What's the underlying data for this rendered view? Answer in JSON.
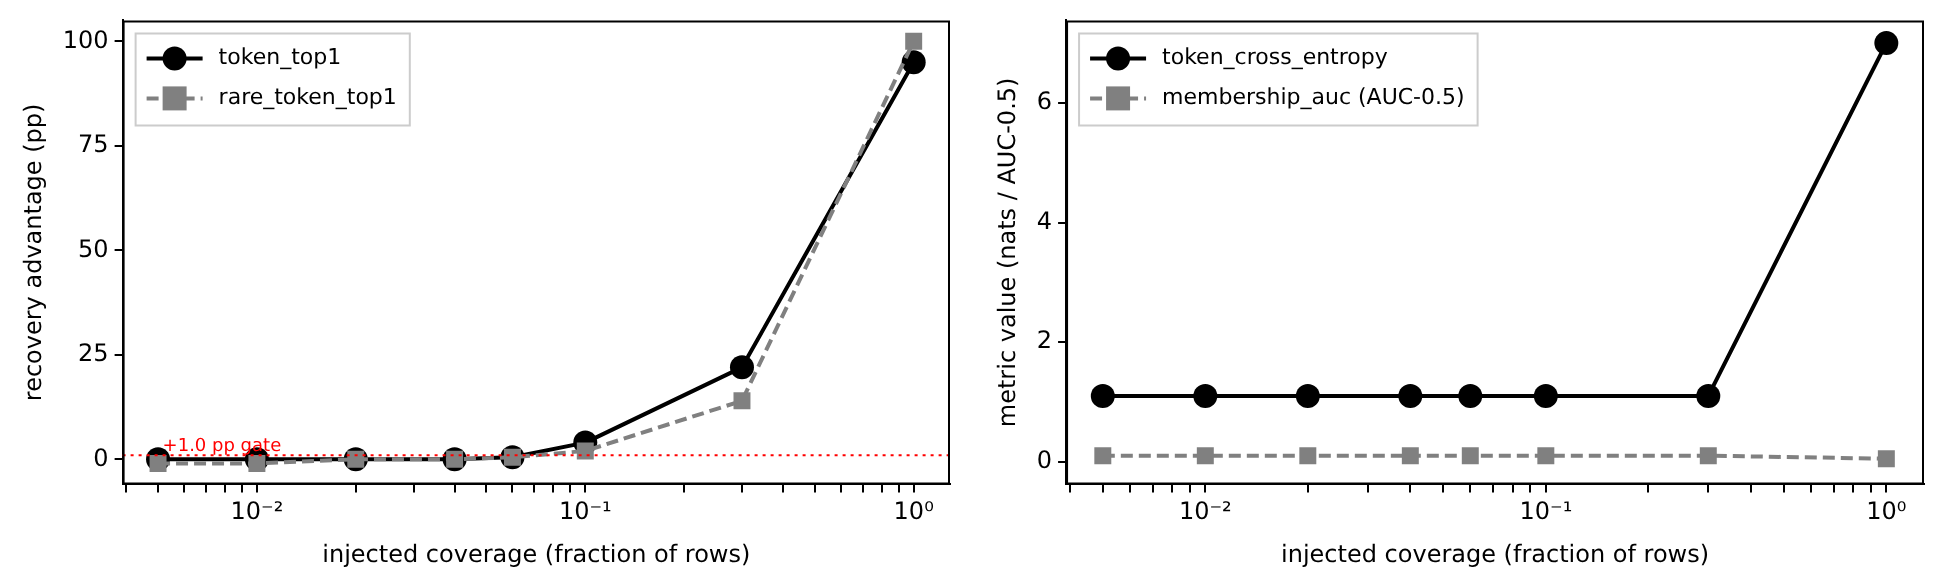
{
  "chart_data": [
    {
      "type": "line",
      "xlabel": "injected coverage (fraction of rows)",
      "ylabel": "recovery advantage (pp)",
      "log": "x",
      "grid": false,
      "legend": "top left",
      "x": [
        0.005,
        0.01,
        0.02,
        0.04,
        0.06,
        0.1,
        0.3,
        1.0
      ],
      "xlim": [
        0.0039,
        1.29
      ],
      "xticks": [
        {
          "value": 0.004,
          "label": null
        },
        {
          "value": 0.005,
          "label": null
        },
        {
          "value": 0.006,
          "label": null
        },
        {
          "value": 0.007,
          "label": null
        },
        {
          "value": 0.008,
          "label": null
        },
        {
          "value": 0.009,
          "label": null
        },
        {
          "value": 0.01,
          "label": "10⁻²"
        },
        {
          "value": 0.02,
          "label": null
        },
        {
          "value": 0.03,
          "label": null
        },
        {
          "value": 0.04,
          "label": null
        },
        {
          "value": 0.05,
          "label": null
        },
        {
          "value": 0.06,
          "label": null
        },
        {
          "value": 0.07,
          "label": null
        },
        {
          "value": 0.08,
          "label": null
        },
        {
          "value": 0.09,
          "label": null
        },
        {
          "value": 0.1,
          "label": "10⁻¹"
        },
        {
          "value": 0.2,
          "label": null
        },
        {
          "value": 0.3,
          "label": null
        },
        {
          "value": 0.4,
          "label": null
        },
        {
          "value": 0.5,
          "label": null
        },
        {
          "value": 0.6,
          "label": null
        },
        {
          "value": 0.7,
          "label": null
        },
        {
          "value": 0.8,
          "label": null
        },
        {
          "value": 0.9,
          "label": null
        },
        {
          "value": 1,
          "label": "10⁰"
        }
      ],
      "ylim": [
        -6,
        105
      ],
      "yticks": [
        0,
        25,
        50,
        75,
        100
      ],
      "series": [
        {
          "name": "token_top1",
          "color": "#000000",
          "marker": "circle",
          "line_style": "solid",
          "values": [
            0,
            0,
            0,
            0,
            0.5,
            4,
            22,
            95
          ]
        },
        {
          "name": "rare_token_top1",
          "color": "#808080",
          "marker": "square",
          "line_style": "dashed",
          "values": [
            -1,
            -1,
            0,
            0,
            0.5,
            2,
            14,
            100
          ]
        }
      ],
      "ref_lines": [
        {
          "axis": "y",
          "value": 1,
          "label": "+1.0 pp gate",
          "color": "#ff0000",
          "line_style": "dotted"
        }
      ]
    },
    {
      "type": "line",
      "xlabel": "injected coverage (fraction of rows)",
      "ylabel": "metric value (nats / AUC-0.5)",
      "log": "x",
      "grid": false,
      "legend": "top left",
      "x": [
        0.005,
        0.01,
        0.02,
        0.04,
        0.06,
        0.1,
        0.3,
        1.0
      ],
      "xlim": [
        0.0039,
        1.29
      ],
      "xticks": [
        {
          "value": 0.004,
          "label": null
        },
        {
          "value": 0.005,
          "label": null
        },
        {
          "value": 0.006,
          "label": null
        },
        {
          "value": 0.007,
          "label": null
        },
        {
          "value": 0.008,
          "label": null
        },
        {
          "value": 0.009,
          "label": null
        },
        {
          "value": 0.01,
          "label": "10⁻²"
        },
        {
          "value": 0.02,
          "label": null
        },
        {
          "value": 0.03,
          "label": null
        },
        {
          "value": 0.04,
          "label": null
        },
        {
          "value": 0.05,
          "label": null
        },
        {
          "value": 0.06,
          "label": null
        },
        {
          "value": 0.07,
          "label": null
        },
        {
          "value": 0.08,
          "label": null
        },
        {
          "value": 0.09,
          "label": null
        },
        {
          "value": 0.1,
          "label": "10⁻¹"
        },
        {
          "value": 0.2,
          "label": null
        },
        {
          "value": 0.3,
          "label": null
        },
        {
          "value": 0.4,
          "label": null
        },
        {
          "value": 0.5,
          "label": null
        },
        {
          "value": 0.6,
          "label": null
        },
        {
          "value": 0.7,
          "label": null
        },
        {
          "value": 0.8,
          "label": null
        },
        {
          "value": 0.9,
          "label": null
        },
        {
          "value": 1,
          "label": "10⁰"
        }
      ],
      "ylim": [
        -0.38,
        7.38
      ],
      "yticks": [
        0,
        2,
        4,
        6
      ],
      "series": [
        {
          "name": "token_cross_entropy",
          "color": "#000000",
          "marker": "circle",
          "line_style": "solid",
          "values": [
            1.1,
            1.1,
            1.1,
            1.1,
            1.1,
            1.1,
            1.1,
            7.0
          ]
        },
        {
          "name": "membership_auc (AUC-0.5)",
          "color": "#808080",
          "marker": "square",
          "line_style": "dashed",
          "values": [
            0.1,
            0.1,
            0.1,
            0.1,
            0.1,
            0.1,
            0.1,
            0.05
          ]
        }
      ]
    }
  ]
}
